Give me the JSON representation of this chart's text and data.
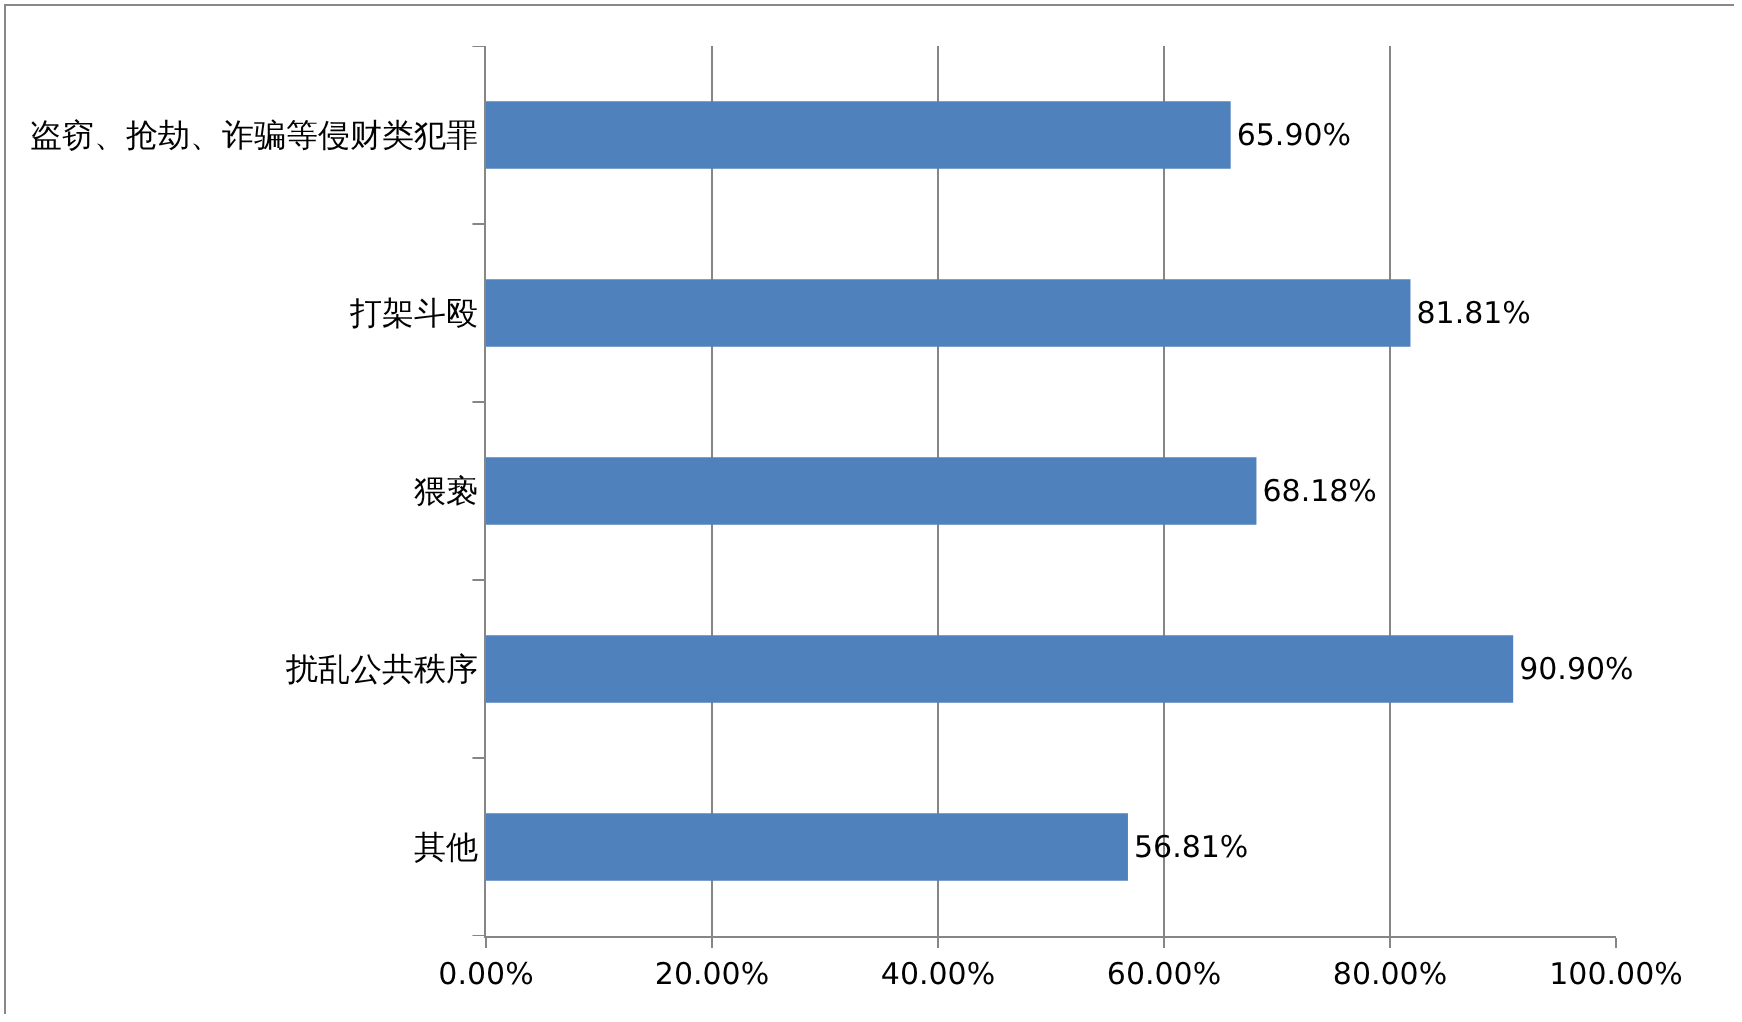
{
  "chart_data": {
    "type": "bar",
    "orientation": "horizontal",
    "categories": [
      "盗窃、抢劫、诈骗等侵财类犯罪",
      "打架斗殴",
      "猥亵",
      "扰乱公共秩序",
      "其他"
    ],
    "values": [
      65.9,
      81.81,
      68.18,
      90.9,
      56.81
    ],
    "value_labels": [
      "65.90%",
      "81.81%",
      "68.18%",
      "90.90%",
      "56.81%"
    ],
    "color": "#4f81bd",
    "xlim": [
      0,
      100
    ],
    "xticks": [
      {
        "value": 0,
        "label": "0.00%"
      },
      {
        "value": 20,
        "label": "20.00%"
      },
      {
        "value": 40,
        "label": "40.00%"
      },
      {
        "value": 60,
        "label": "60.00%"
      },
      {
        "value": 80,
        "label": "80.00%"
      },
      {
        "value": 100,
        "label": "100.00%"
      }
    ],
    "grid": "x"
  }
}
